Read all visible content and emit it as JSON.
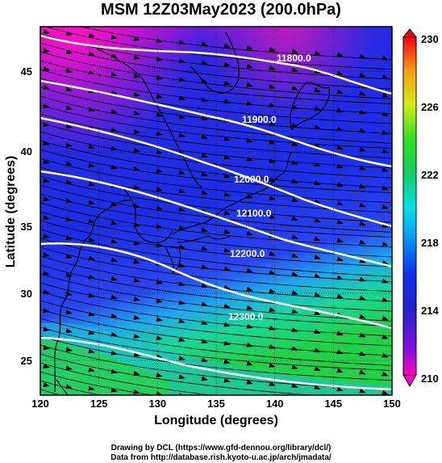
{
  "title": "MSM 12Z03May2023 (200.0hPa)",
  "xaxis": {
    "label": "Longitude (degrees)",
    "range": [
      120,
      150
    ],
    "ticks": [
      "120",
      "125",
      "130",
      "135",
      "140",
      "145",
      "150"
    ]
  },
  "yaxis": {
    "label": "Latitude  (degrees)",
    "range": [
      22.4,
      47.6
    ],
    "ticks": [
      "25",
      "30",
      "35",
      "40",
      "45"
    ]
  },
  "colorbar": {
    "ticks": [
      "230",
      "226",
      "222",
      "218",
      "214",
      "210"
    ],
    "min": 210,
    "max": 230
  },
  "contours": [
    {
      "label": "11800.0"
    },
    {
      "label": "11900.0"
    },
    {
      "label": "12000.0"
    },
    {
      "label": "12100.0"
    },
    {
      "label": "12200.0"
    },
    {
      "label": "12300.0"
    }
  ],
  "credits": {
    "line1": "Drawing by DCL (https://www.gfd-dennou.org/library/dcl/)",
    "line2": "Data from http://database.rish.kyoto-u.ac.jp/arch/jmadata/"
  }
}
